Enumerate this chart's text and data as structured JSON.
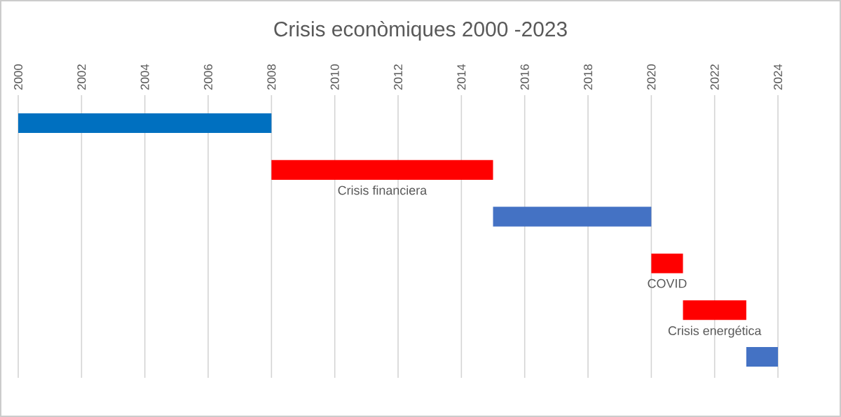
{
  "chart_data": {
    "type": "bar",
    "orientation": "horizontal",
    "title": "Crisis econòmiques 2000 -2023",
    "categories": [
      null,
      null,
      null,
      null,
      null,
      null
    ],
    "base": [
      2000,
      2008,
      2015,
      2020,
      2021,
      2023
    ],
    "values": [
      8,
      7,
      5,
      1,
      2,
      1
    ],
    "colors": [
      "#0070c0",
      "#ff0000",
      "#4472c4",
      "#ff0000",
      "#ff0000",
      "#4472c4"
    ],
    "xlim": [
      2000,
      2024
    ],
    "xticks": [
      2000,
      2002,
      2004,
      2006,
      2008,
      2010,
      2012,
      2014,
      2016,
      2018,
      2020,
      2022,
      2024
    ],
    "grid": "x",
    "tick_labels": "x",
    "annotations": [
      "Crisis financiera",
      "COVID",
      "Crisis energética"
    ]
  }
}
